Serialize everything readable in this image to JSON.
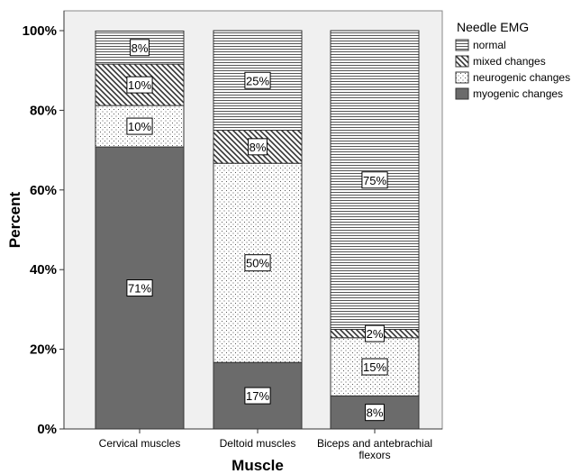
{
  "chart_data": {
    "type": "bar",
    "stacked": true,
    "percent": true,
    "categories": [
      "Cervical muscles",
      "Deltoid muscles",
      "Biceps and antebrachial flexors"
    ],
    "category_display": [
      [
        "Cervical muscles"
      ],
      [
        "Deltoid muscles"
      ],
      [
        "Biceps and antebrachial",
        "flexors"
      ]
    ],
    "series": [
      {
        "name": "myogenic changes",
        "values": [
          70.8,
          16.7,
          8.3
        ],
        "labels": [
          "71%",
          "17%",
          "8%"
        ],
        "pattern": "solid",
        "color": "#6b6b6b"
      },
      {
        "name": "neurogenic changes",
        "values": [
          10.4,
          50.0,
          14.6
        ],
        "labels": [
          "10%",
          "50%",
          "15%"
        ],
        "pattern": "dots",
        "color": "#ffffff"
      },
      {
        "name": "mixed changes",
        "values": [
          10.4,
          8.3,
          2.1
        ],
        "labels": [
          "10%",
          "8%",
          "2%"
        ],
        "pattern": "diagonal",
        "color": "#ffffff"
      },
      {
        "name": "normal",
        "values": [
          8.3,
          25.0,
          75.0
        ],
        "labels": [
          "8%",
          "25%",
          "75%"
        ],
        "pattern": "horizontal",
        "color": "#ffffff"
      }
    ],
    "legend": {
      "title": "Needle EMG",
      "placement": "top-right",
      "order": [
        "normal",
        "mixed changes",
        "neurogenic changes",
        "myogenic changes"
      ]
    },
    "xlabel": "Muscle",
    "ylabel": "Percent",
    "ylim": [
      0,
      100
    ],
    "yticks": [
      0,
      20,
      40,
      60,
      80,
      100
    ],
    "ytick_labels": [
      "0%",
      "20%",
      "40%",
      "60%",
      "80%",
      "100%"
    ],
    "grid": false,
    "background": "#f0f0f0"
  }
}
